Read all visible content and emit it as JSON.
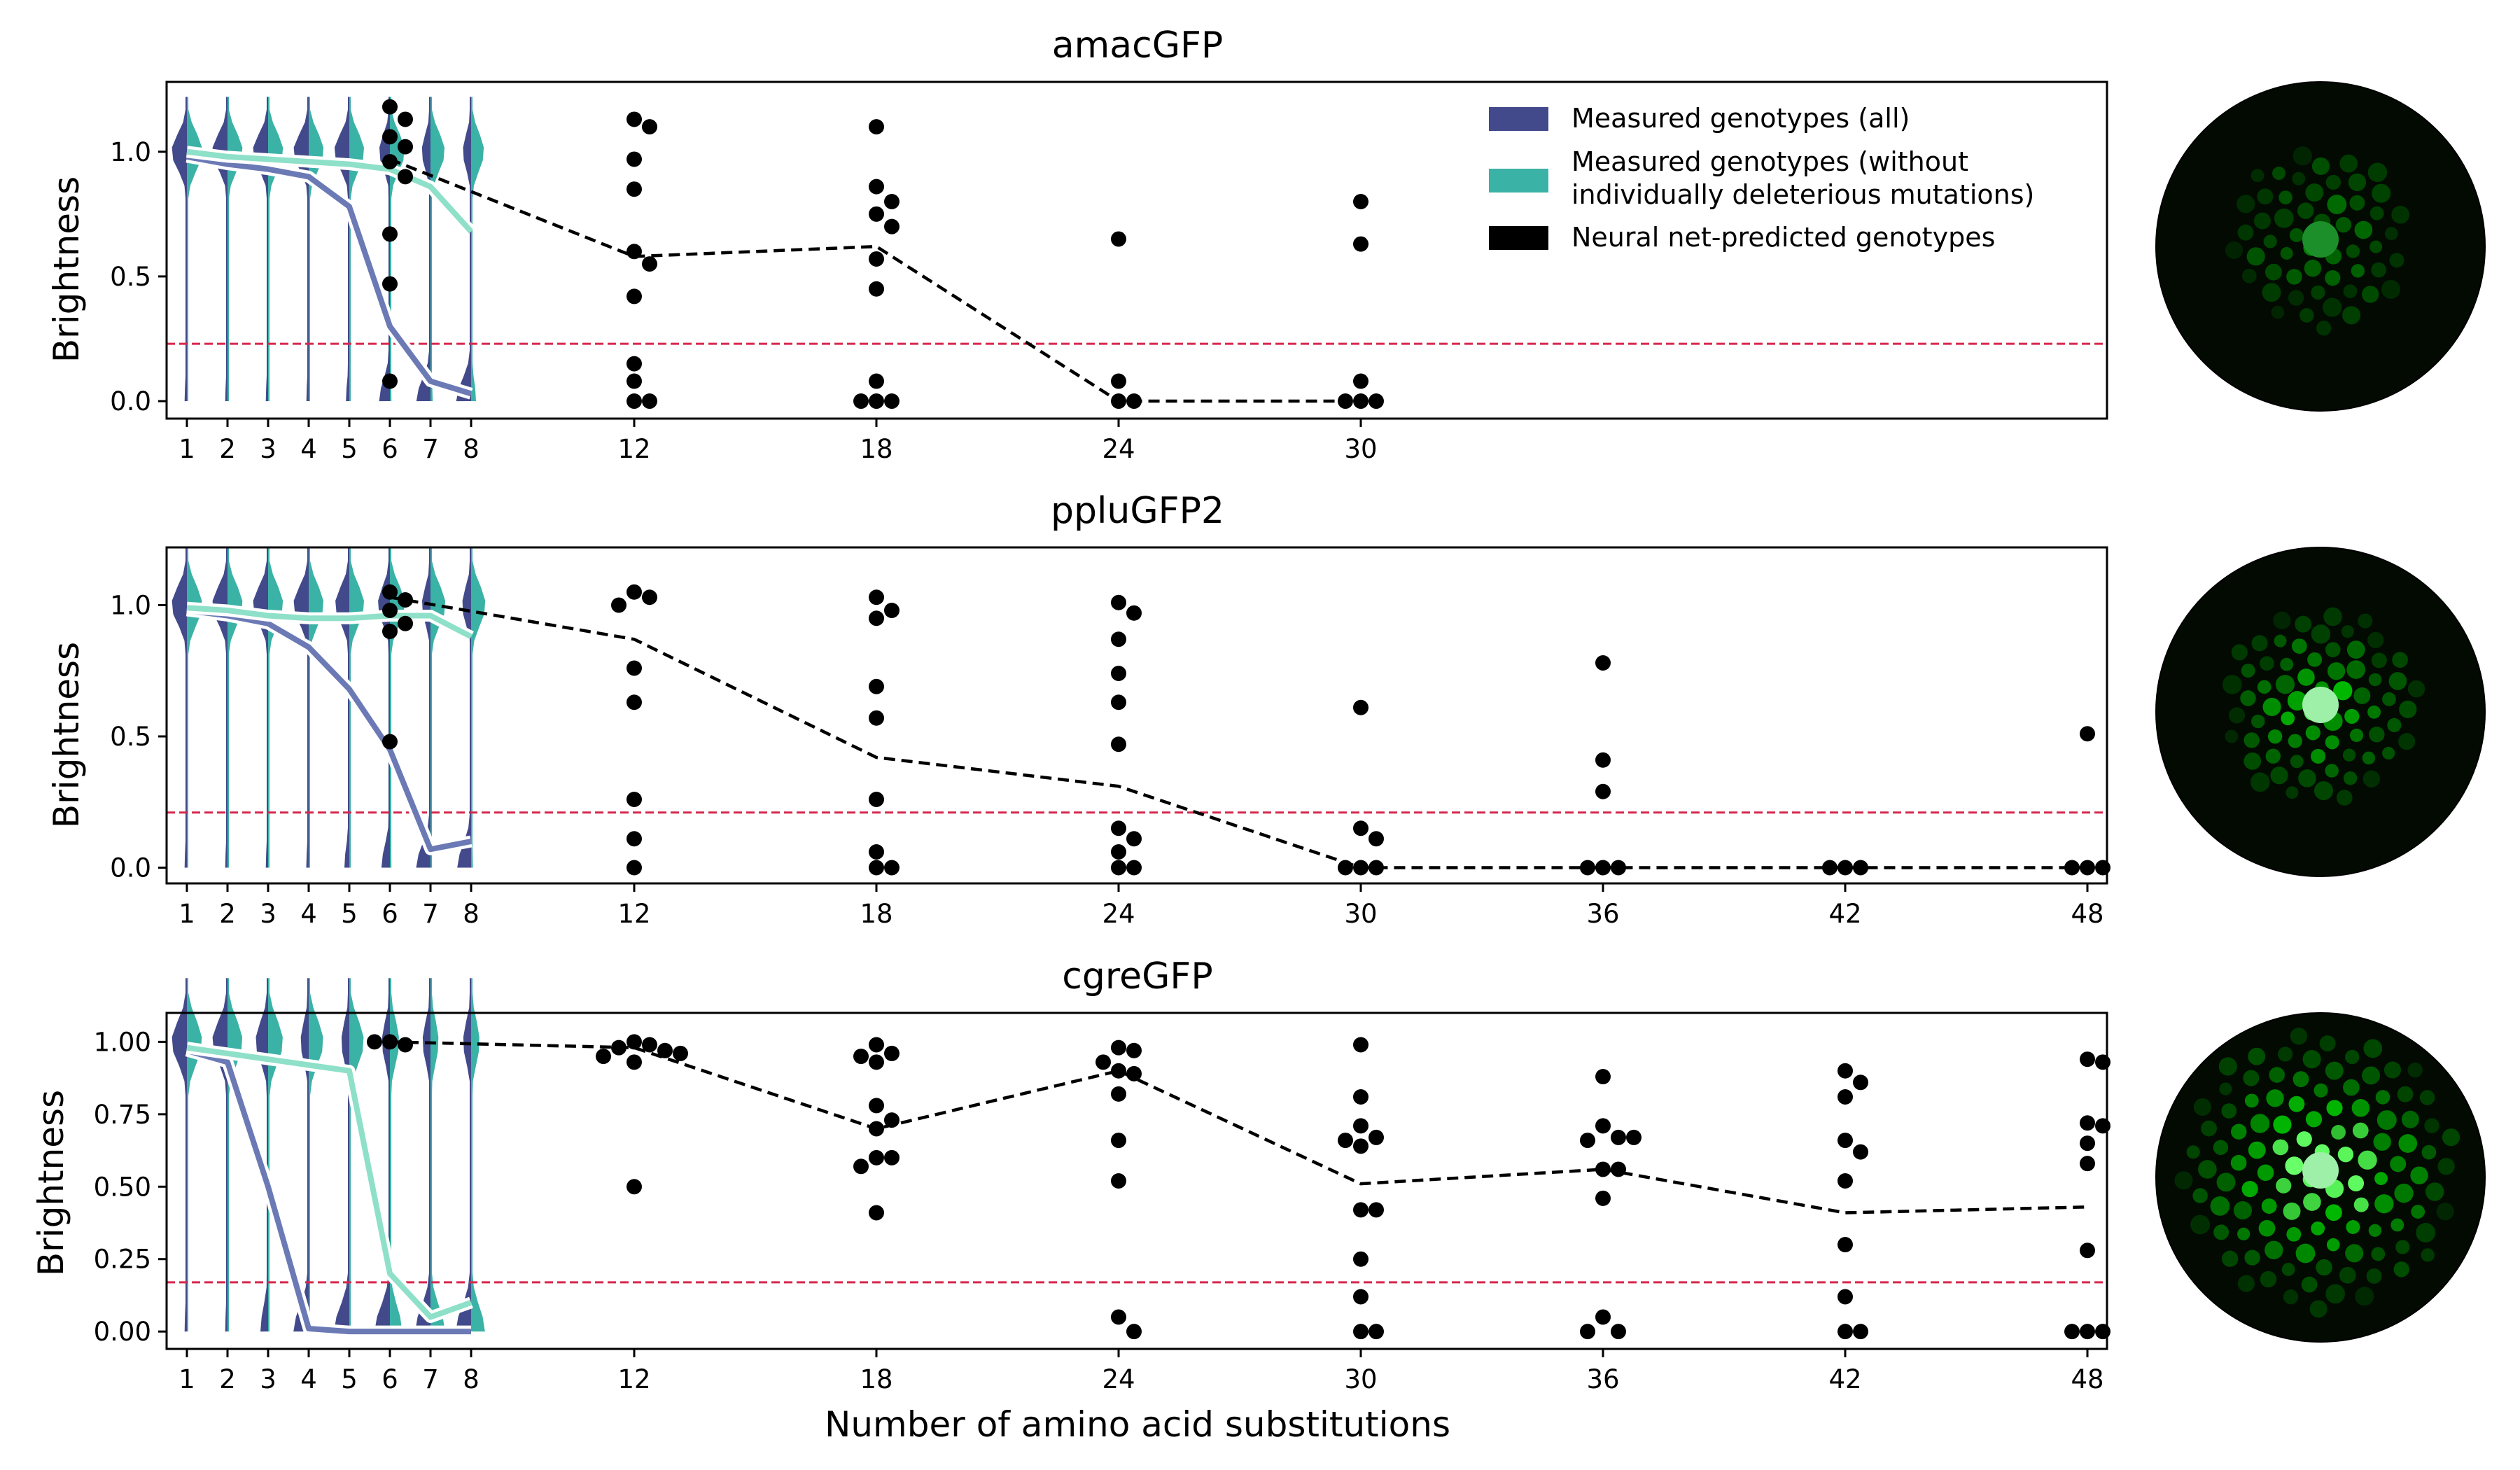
{
  "colors": {
    "all": "#434a8b",
    "filtered": "#3bb2a6",
    "filtered_line": "#8ee0c8",
    "all_line": "#6b7ab5",
    "threshold": "#d6284d",
    "predicted": "#000000"
  },
  "legend": {
    "all": "Measured genotypes (all)",
    "filtered_1": "Measured genotypes (without",
    "filtered_2": "individually deleterious mutations)",
    "predicted": "Neural net-predicted genotypes"
  },
  "xlabel": "Number of amino acid substitutions",
  "chart_data": [
    {
      "type": "scatter",
      "title": "amacGFP",
      "ylabel": "Brightness",
      "ylim": [
        -0.07,
        1.28
      ],
      "yticks": [
        0.0,
        0.5,
        1.0
      ],
      "ytick_labels": [
        "0.0",
        "0.5",
        "1.0"
      ],
      "xticks": [
        1,
        2,
        3,
        4,
        5,
        6,
        7,
        8,
        12,
        18,
        24,
        30
      ],
      "xtick_labels": [
        "1",
        "2",
        "3",
        "4",
        "5",
        "6",
        "7",
        "8",
        "12",
        "18",
        "24",
        "30"
      ],
      "threshold": 0.23,
      "legend": "top-right",
      "measured_all_median": {
        "x": [
          1,
          2,
          3,
          4,
          5,
          6,
          7,
          8
        ],
        "y": [
          0.98,
          0.95,
          0.93,
          0.9,
          0.78,
          0.3,
          0.08,
          0.03
        ]
      },
      "measured_filtered_median": {
        "x": [
          1,
          2,
          3,
          4,
          5,
          6,
          7,
          8
        ],
        "y": [
          1.0,
          0.98,
          0.97,
          0.96,
          0.95,
          0.93,
          0.86,
          0.68
        ]
      },
      "predicted_mean": {
        "x": [
          6,
          12,
          18,
          24,
          30
        ],
        "y": [
          0.97,
          0.58,
          0.62,
          0.0,
          0.0
        ]
      },
      "predicted_points": {
        "x": [
          6,
          6,
          6,
          6,
          6,
          6,
          6,
          6,
          6,
          12,
          12,
          12,
          12,
          12,
          12,
          12,
          12,
          12,
          12,
          12,
          18,
          18,
          18,
          18,
          18,
          18,
          18,
          18,
          18,
          18,
          18,
          24,
          24,
          24,
          24,
          30,
          30,
          30,
          30,
          30,
          30
        ],
        "y": [
          1.18,
          1.13,
          1.06,
          1.02,
          0.96,
          0.9,
          0.67,
          0.47,
          0.08,
          1.13,
          1.1,
          0.97,
          0.85,
          0.6,
          0.55,
          0.42,
          0.15,
          0.08,
          0.0,
          0.0,
          1.1,
          0.86,
          0.8,
          0.75,
          0.7,
          0.57,
          0.45,
          0.08,
          0.0,
          0.0,
          0.0,
          0.65,
          0.08,
          0.0,
          0.0,
          0.8,
          0.63,
          0.08,
          0.0,
          0.0,
          0.0
        ]
      }
    },
    {
      "type": "scatter",
      "title": "ppluGFP2",
      "ylabel": "Brightness",
      "ylim": [
        -0.06,
        1.22
      ],
      "yticks": [
        0.0,
        0.5,
        1.0
      ],
      "ytick_labels": [
        "0.0",
        "0.5",
        "1.0"
      ],
      "xticks": [
        1,
        2,
        3,
        4,
        5,
        6,
        7,
        8,
        12,
        18,
        24,
        30,
        36,
        42,
        48
      ],
      "xtick_labels": [
        "1",
        "2",
        "3",
        "4",
        "5",
        "6",
        "7",
        "8",
        "12",
        "18",
        "24",
        "30",
        "36",
        "42",
        "48"
      ],
      "threshold": 0.21,
      "measured_all_median": {
        "x": [
          1,
          2,
          3,
          4,
          5,
          6,
          7,
          8
        ],
        "y": [
          0.98,
          0.96,
          0.93,
          0.84,
          0.68,
          0.45,
          0.07,
          0.1
        ]
      },
      "measured_filtered_median": {
        "x": [
          1,
          2,
          3,
          4,
          5,
          6,
          7,
          8
        ],
        "y": [
          0.99,
          0.98,
          0.96,
          0.95,
          0.95,
          0.96,
          0.96,
          0.88
        ]
      },
      "predicted_mean": {
        "x": [
          6,
          12,
          18,
          24,
          30,
          36,
          42,
          48
        ],
        "y": [
          1.03,
          0.87,
          0.42,
          0.31,
          0.0,
          0.0,
          0.0,
          0.0
        ]
      },
      "predicted_points": {
        "x": [
          6,
          6,
          6,
          6,
          6,
          6,
          12,
          12,
          12,
          12,
          12,
          12,
          12,
          12,
          18,
          18,
          18,
          18,
          18,
          18,
          18,
          18,
          18,
          24,
          24,
          24,
          24,
          24,
          24,
          24,
          24,
          24,
          24,
          24,
          30,
          30,
          30,
          30,
          30,
          30,
          36,
          36,
          36,
          36,
          36,
          36,
          42,
          42,
          42,
          48,
          48,
          48,
          48
        ],
        "y": [
          1.05,
          1.02,
          0.98,
          0.93,
          0.9,
          0.48,
          1.05,
          1.03,
          1.0,
          0.76,
          0.63,
          0.26,
          0.11,
          0.0,
          1.03,
          0.98,
          0.95,
          0.69,
          0.57,
          0.26,
          0.06,
          0.0,
          0.0,
          1.01,
          0.97,
          0.87,
          0.74,
          0.63,
          0.47,
          0.15,
          0.11,
          0.06,
          0.0,
          0.0,
          0.61,
          0.15,
          0.11,
          0.0,
          0.0,
          0.0,
          0.78,
          0.41,
          0.29,
          0.0,
          0.0,
          0.0,
          0.0,
          0.0,
          0.0,
          0.51,
          0.0,
          0.0,
          0.0
        ]
      }
    },
    {
      "type": "scatter",
      "title": "cgreGFP",
      "ylabel": "Brightness",
      "ylim": [
        -0.06,
        1.1
      ],
      "yticks": [
        0.0,
        0.25,
        0.5,
        0.75,
        1.0
      ],
      "ytick_labels": [
        "0.00",
        "0.25",
        "0.50",
        "0.75",
        "1.00"
      ],
      "xticks": [
        1,
        2,
        3,
        4,
        5,
        6,
        7,
        8,
        12,
        18,
        24,
        30,
        36,
        42,
        48
      ],
      "xtick_labels": [
        "1",
        "2",
        "3",
        "4",
        "5",
        "6",
        "7",
        "8",
        "12",
        "18",
        "24",
        "30",
        "36",
        "42",
        "48"
      ],
      "threshold": 0.17,
      "measured_all_median": {
        "x": [
          1,
          2,
          3,
          4,
          5,
          6,
          7,
          8
        ],
        "y": [
          0.97,
          0.93,
          0.5,
          0.01,
          0.0,
          0.0,
          0.0,
          0.0
        ]
      },
      "measured_filtered_median": {
        "x": [
          1,
          2,
          3,
          4,
          5,
          6,
          7,
          8
        ],
        "y": [
          0.98,
          0.96,
          0.94,
          0.92,
          0.9,
          0.2,
          0.05,
          0.1
        ]
      },
      "predicted_mean": {
        "x": [
          6,
          12,
          18,
          24,
          30,
          36,
          42,
          48
        ],
        "y": [
          1.0,
          0.98,
          0.7,
          0.9,
          0.51,
          0.56,
          0.41,
          0.43
        ]
      },
      "predicted_points": {
        "x": [
          6,
          6,
          6,
          12,
          12,
          12,
          12,
          12,
          12,
          12,
          12,
          18,
          18,
          18,
          18,
          18,
          18,
          18,
          18,
          18,
          18,
          18,
          24,
          24,
          24,
          24,
          24,
          24,
          24,
          24,
          24,
          24,
          30,
          30,
          30,
          30,
          30,
          30,
          30,
          30,
          30,
          30,
          30,
          30,
          36,
          36,
          36,
          36,
          36,
          36,
          36,
          36,
          36,
          36,
          36,
          42,
          42,
          42,
          42,
          42,
          42,
          42,
          42,
          42,
          42,
          48,
          48,
          48,
          48,
          48,
          48,
          48,
          48,
          48,
          48
        ],
        "y": [
          1.0,
          0.99,
          1.0,
          1.0,
          0.99,
          0.98,
          0.97,
          0.95,
          0.93,
          0.96,
          0.5,
          0.99,
          0.96,
          0.93,
          0.78,
          0.73,
          0.7,
          0.6,
          0.6,
          0.57,
          0.41,
          0.95,
          0.98,
          0.97,
          0.93,
          0.9,
          0.89,
          0.82,
          0.66,
          0.52,
          0.05,
          0.0,
          0.99,
          0.81,
          0.71,
          0.67,
          0.64,
          0.66,
          0.42,
          0.42,
          0.25,
          0.12,
          0.0,
          0.0,
          0.88,
          0.71,
          0.67,
          0.66,
          0.67,
          0.56,
          0.56,
          0.46,
          0.05,
          0.0,
          0.0,
          0.9,
          0.86,
          0.81,
          0.66,
          0.62,
          0.52,
          0.3,
          0.12,
          0.0,
          0.0,
          0.94,
          0.93,
          0.72,
          0.71,
          0.65,
          0.58,
          0.28,
          0.0,
          0.0,
          0.0
        ]
      }
    }
  ]
}
